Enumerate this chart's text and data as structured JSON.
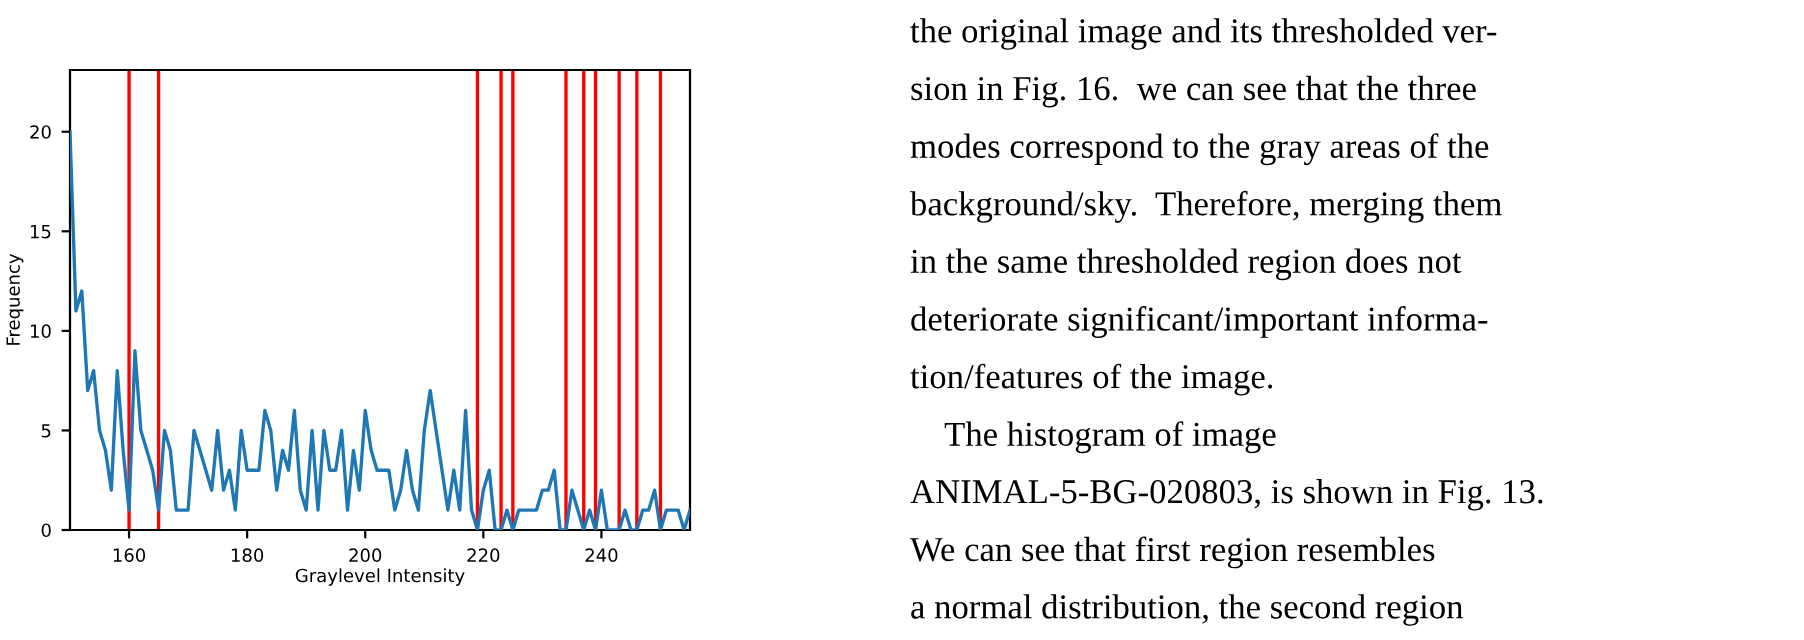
{
  "chart_data": {
    "type": "line",
    "xlabel": "Graylevel Intensity",
    "ylabel": "Frequency",
    "x": [
      150,
      151,
      152,
      153,
      154,
      155,
      156,
      157,
      158,
      159,
      160,
      161,
      162,
      163,
      164,
      165,
      166,
      167,
      168,
      169,
      170,
      171,
      172,
      173,
      174,
      175,
      176,
      177,
      178,
      179,
      180,
      181,
      182,
      183,
      184,
      185,
      186,
      187,
      188,
      189,
      190,
      191,
      192,
      193,
      194,
      195,
      196,
      197,
      198,
      199,
      200,
      201,
      202,
      203,
      204,
      205,
      206,
      207,
      208,
      209,
      210,
      211,
      212,
      213,
      214,
      215,
      216,
      217,
      218,
      219,
      220,
      221,
      222,
      223,
      224,
      225,
      226,
      227,
      228,
      229,
      230,
      231,
      232,
      233,
      234,
      235,
      236,
      237,
      238,
      239,
      240,
      241,
      242,
      243,
      244,
      245,
      246,
      247,
      248,
      249,
      250,
      251,
      252,
      253,
      254,
      255
    ],
    "series": [
      {
        "color": "#1f77b4",
        "values": [
          20,
          11,
          12,
          7,
          8,
          5,
          4,
          2,
          8,
          4,
          1,
          9,
          5,
          4,
          3,
          1,
          5,
          4,
          1,
          1,
          1,
          5,
          4,
          3,
          2,
          5,
          2,
          3,
          1,
          5,
          3,
          3,
          3,
          6,
          5,
          2,
          4,
          3,
          6,
          2,
          1,
          5,
          1,
          5,
          3,
          3,
          5,
          1,
          4,
          2,
          6,
          4,
          3,
          3,
          3,
          1,
          2,
          4,
          2,
          1,
          5,
          7,
          5,
          3,
          1,
          3,
          1,
          6,
          1,
          0,
          2,
          3,
          0,
          0,
          1,
          0,
          1,
          1,
          1,
          1,
          2,
          2,
          3,
          0,
          0,
          2,
          1,
          0,
          1,
          0,
          2,
          0,
          0,
          0,
          1,
          0,
          0,
          1,
          1,
          2,
          0,
          1,
          1,
          1,
          0,
          1
        ]
      }
    ],
    "xlim": [
      150,
      255
    ],
    "ylim": [
      0,
      23.1
    ],
    "xticks": [
      160,
      180,
      200,
      220,
      240
    ],
    "yticks": [
      0,
      5,
      10,
      15,
      20
    ],
    "grid": false,
    "legend": false,
    "marker": "none",
    "line_style": "solid",
    "ref_lines": [
      {
        "axis": "x",
        "value": 160,
        "color": "#ff0000"
      },
      {
        "axis": "x",
        "value": 165,
        "color": "#ff0000"
      },
      {
        "axis": "x",
        "value": 219,
        "color": "#ff0000"
      },
      {
        "axis": "x",
        "value": 223,
        "color": "#ff0000"
      },
      {
        "axis": "x",
        "value": 225,
        "color": "#ff0000"
      },
      {
        "axis": "x",
        "value": 234,
        "color": "#ff0000"
      },
      {
        "axis": "x",
        "value": 237,
        "color": "#ff0000"
      },
      {
        "axis": "x",
        "value": 239,
        "color": "#ff0000"
      },
      {
        "axis": "x",
        "value": 243,
        "color": "#ff0000"
      },
      {
        "axis": "x",
        "value": 246,
        "color": "#ff0000"
      },
      {
        "axis": "x",
        "value": 250,
        "color": "#ff0000"
      }
    ],
    "annotations": [
      "the original image and its thresholded ver-",
      "sion in Fig. 16.  we can see that the three",
      "modes correspond to the gray areas of the",
      "background/sky.  Therefore, merging them",
      "in the same thresholded region does not",
      "deteriorate significant/important informa-",
      "tion/features of the image.",
      "    The histogram of image",
      "ANIMAL-5-BG-020803, is shown in Fig. 13.",
      "We can see that first region resembles",
      "a normal distribution, the second region"
    ]
  }
}
